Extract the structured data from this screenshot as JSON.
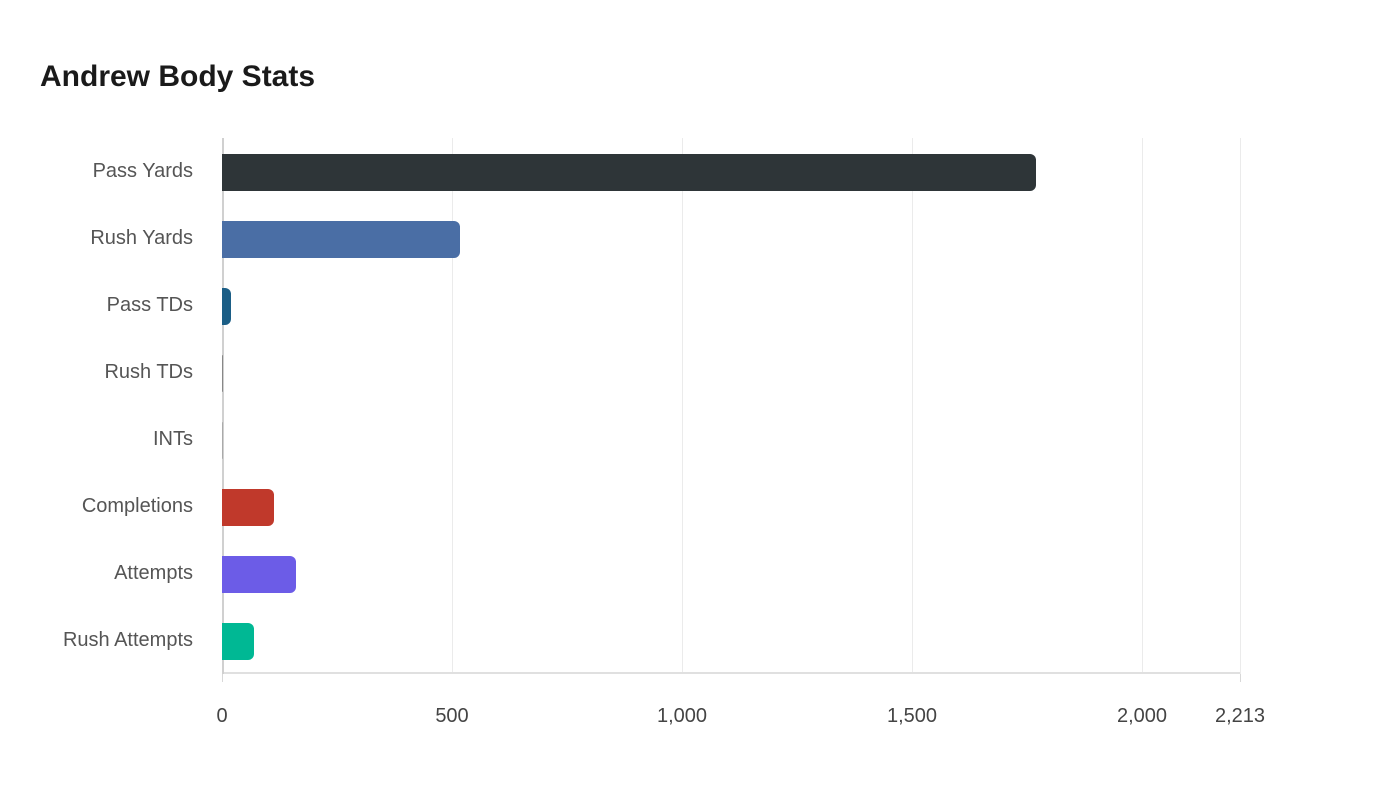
{
  "chart_data": {
    "type": "bar",
    "orientation": "horizontal",
    "title": "Andrew Body Stats",
    "categories": [
      "Pass Yards",
      "Rush Yards",
      "Pass TDs",
      "Rush TDs",
      "INTs",
      "Completions",
      "Attempts",
      "Rush Attempts"
    ],
    "values": [
      1770,
      517,
      20,
      3,
      1,
      113,
      161,
      70
    ],
    "colors": [
      "#2e3538",
      "#4a6ea5",
      "#1b5e86",
      "#888888",
      "#aaaaaa",
      "#c0392b",
      "#6c5ce7",
      "#00b894"
    ],
    "xlabel": "",
    "ylabel": "",
    "xlim": [
      0,
      2213
    ],
    "xticks": [
      "0",
      "500",
      "1,000",
      "1,500",
      "2,000",
      "2,213"
    ],
    "grid": true
  }
}
